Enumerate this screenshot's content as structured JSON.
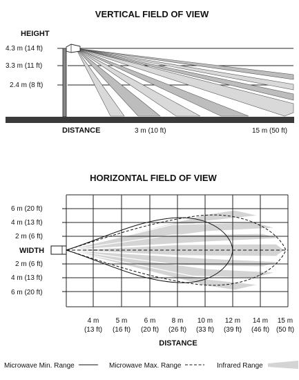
{
  "vertical": {
    "title": "VERTICAL FIELD OF VIEW",
    "height_label": "HEIGHT",
    "distance_label": "DISTANCE",
    "height_lines": [
      {
        "label": "4.3 m (14 ft)",
        "m": 4.3
      },
      {
        "label": "3.3 m (11 ft)",
        "m": 3.3
      },
      {
        "label": "2.4 m (8 ft)",
        "m": 2.4
      }
    ],
    "distance_ticks": [
      {
        "label": "3 m (10 ft)",
        "m": 3
      },
      {
        "label": "15 m (50 ft)",
        "m": 15
      }
    ]
  },
  "horizontal": {
    "title": "HORIZONTAL FIELD OF VIEW",
    "width_label": "WIDTH",
    "distance_label": "DISTANCE",
    "width_labels_top": [
      "6 m (20 ft)",
      "4 m (13 ft)",
      "2 m (6 ft)"
    ],
    "width_labels_bottom": [
      "2 m (6 ft)",
      "4 m (13 ft)",
      "6 m (20 ft)"
    ],
    "distance_ticks": [
      {
        "m": "4 m",
        "ft": "(13 ft)"
      },
      {
        "m": "5 m",
        "ft": "(16 ft)"
      },
      {
        "m": "6 m",
        "ft": "(20 ft)"
      },
      {
        "m": "8 m",
        "ft": "(26 ft)"
      },
      {
        "m": "10 m",
        "ft": "(33 ft)"
      },
      {
        "m": "12 m",
        "ft": "(39 ft)"
      },
      {
        "m": "14 m",
        "ft": "(46 ft)"
      },
      {
        "m": "15 m",
        "ft": "(50 ft)"
      }
    ]
  },
  "legend": {
    "microwave_min": "Microwave Min. Range",
    "microwave_max": "Microwave Max. Range",
    "infrared": "Infrared Range"
  },
  "colors": {
    "infrared_fill": "#d9d9d9",
    "infrared_fill_dark": "#bdbdbd",
    "ground": "#3a3a3a",
    "line": "#111111"
  }
}
